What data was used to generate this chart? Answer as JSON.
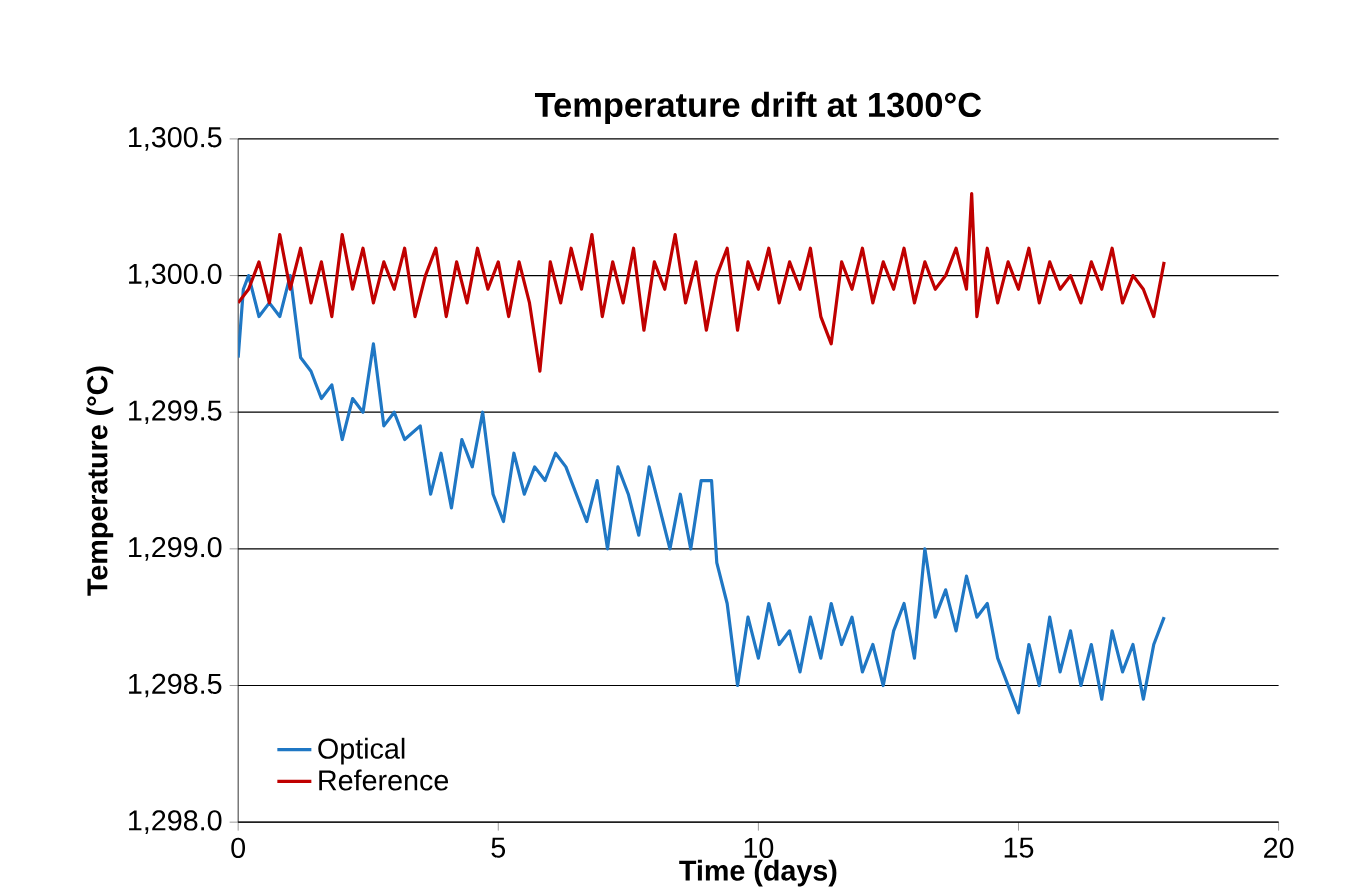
{
  "chart_data": {
    "type": "line",
    "title": "Temperature drift at 1300°C",
    "xlabel": "Time (days)",
    "ylabel": "Temperature (°C)",
    "xlim": [
      0,
      20
    ],
    "xticks": [
      0,
      5,
      10,
      15,
      20
    ],
    "ylim": [
      1298.0,
      1300.5
    ],
    "yticks": [
      {
        "value": 1298.0,
        "label": "1,298.0"
      },
      {
        "value": 1298.5,
        "label": "1,298.5"
      },
      {
        "value": 1299.0,
        "label": "1,299.0"
      },
      {
        "value": 1299.5,
        "label": "1,299.5"
      },
      {
        "value": 1300.0,
        "label": "1,300.0"
      },
      {
        "value": 1300.5,
        "label": "1,300.5"
      }
    ],
    "grid": "y",
    "legend": "bottom left",
    "marker": "none",
    "line_style": "solid",
    "series": [
      {
        "name": "Optical",
        "color": "#1f77c4",
        "x": [
          0,
          0.1,
          0.2,
          0.4,
          0.6,
          0.8,
          1.0,
          1.2,
          1.4,
          1.6,
          1.8,
          2.0,
          2.2,
          2.4,
          2.6,
          2.8,
          3.0,
          3.2,
          3.5,
          3.7,
          3.9,
          4.1,
          4.3,
          4.5,
          4.7,
          4.9,
          5.1,
          5.3,
          5.5,
          5.7,
          5.9,
          6.1,
          6.3,
          6.5,
          6.7,
          6.9,
          7.1,
          7.3,
          7.5,
          7.7,
          7.9,
          8.1,
          8.3,
          8.5,
          8.7,
          8.9,
          9.1,
          9.2,
          9.4,
          9.6,
          9.8,
          10.0,
          10.2,
          10.4,
          10.6,
          10.8,
          11.0,
          11.2,
          11.4,
          11.6,
          11.8,
          12.0,
          12.2,
          12.4,
          12.6,
          12.8,
          13.0,
          13.2,
          13.4,
          13.6,
          13.8,
          14.0,
          14.2,
          14.4,
          14.6,
          14.8,
          15.0,
          15.2,
          15.4,
          15.6,
          15.8,
          16.0,
          16.2,
          16.4,
          16.6,
          16.8,
          17.0,
          17.2,
          17.4,
          17.6,
          17.8
        ],
        "values": [
          1299.7,
          1299.95,
          1300.0,
          1299.85,
          1299.9,
          1299.85,
          1300.0,
          1299.7,
          1299.65,
          1299.55,
          1299.6,
          1299.4,
          1299.55,
          1299.5,
          1299.75,
          1299.45,
          1299.5,
          1299.4,
          1299.45,
          1299.2,
          1299.35,
          1299.15,
          1299.4,
          1299.3,
          1299.5,
          1299.2,
          1299.1,
          1299.35,
          1299.2,
          1299.3,
          1299.25,
          1299.35,
          1299.3,
          1299.2,
          1299.1,
          1299.25,
          1299.0,
          1299.3,
          1299.2,
          1299.05,
          1299.3,
          1299.15,
          1299.0,
          1299.2,
          1299.0,
          1299.25,
          1299.25,
          1298.95,
          1298.8,
          1298.5,
          1298.75,
          1298.6,
          1298.8,
          1298.65,
          1298.7,
          1298.55,
          1298.75,
          1298.6,
          1298.8,
          1298.65,
          1298.75,
          1298.55,
          1298.65,
          1298.5,
          1298.7,
          1298.8,
          1298.6,
          1299.0,
          1298.75,
          1298.85,
          1298.7,
          1298.9,
          1298.75,
          1298.8,
          1298.6,
          1298.5,
          1298.4,
          1298.65,
          1298.5,
          1298.75,
          1298.55,
          1298.7,
          1298.5,
          1298.65,
          1298.45,
          1298.7,
          1298.55,
          1298.65,
          1298.45,
          1298.65,
          1298.75
        ]
      },
      {
        "name": "Reference",
        "color": "#c00000",
        "x": [
          0,
          0.2,
          0.4,
          0.6,
          0.8,
          1.0,
          1.2,
          1.4,
          1.6,
          1.8,
          2.0,
          2.2,
          2.4,
          2.6,
          2.8,
          3.0,
          3.2,
          3.4,
          3.6,
          3.8,
          4.0,
          4.2,
          4.4,
          4.6,
          4.8,
          5.0,
          5.2,
          5.4,
          5.6,
          5.8,
          6.0,
          6.2,
          6.4,
          6.6,
          6.8,
          7.0,
          7.2,
          7.4,
          7.6,
          7.8,
          8.0,
          8.2,
          8.4,
          8.6,
          8.8,
          9.0,
          9.2,
          9.4,
          9.6,
          9.8,
          10.0,
          10.2,
          10.4,
          10.6,
          10.8,
          11.0,
          11.2,
          11.4,
          11.6,
          11.8,
          12.0,
          12.2,
          12.4,
          12.6,
          12.8,
          13.0,
          13.2,
          13.4,
          13.6,
          13.8,
          14.0,
          14.1,
          14.2,
          14.4,
          14.6,
          14.8,
          15.0,
          15.2,
          15.4,
          15.6,
          15.8,
          16.0,
          16.2,
          16.4,
          16.6,
          16.8,
          17.0,
          17.2,
          17.4,
          17.6,
          17.8
        ],
        "values": [
          1299.9,
          1299.95,
          1300.05,
          1299.9,
          1300.15,
          1299.95,
          1300.1,
          1299.9,
          1300.05,
          1299.85,
          1300.15,
          1299.95,
          1300.1,
          1299.9,
          1300.05,
          1299.95,
          1300.1,
          1299.85,
          1300.0,
          1300.1,
          1299.85,
          1300.05,
          1299.9,
          1300.1,
          1299.95,
          1300.05,
          1299.85,
          1300.05,
          1299.9,
          1299.65,
          1300.05,
          1299.9,
          1300.1,
          1299.95,
          1300.15,
          1299.85,
          1300.05,
          1299.9,
          1300.1,
          1299.8,
          1300.05,
          1299.95,
          1300.15,
          1299.9,
          1300.05,
          1299.8,
          1300.0,
          1300.1,
          1299.8,
          1300.05,
          1299.95,
          1300.1,
          1299.9,
          1300.05,
          1299.95,
          1300.1,
          1299.85,
          1299.75,
          1300.05,
          1299.95,
          1300.1,
          1299.9,
          1300.05,
          1299.95,
          1300.1,
          1299.9,
          1300.05,
          1299.95,
          1300.0,
          1300.1,
          1299.95,
          1300.3,
          1299.85,
          1300.1,
          1299.9,
          1300.05,
          1299.95,
          1300.1,
          1299.9,
          1300.05,
          1299.95,
          1300.0,
          1299.9,
          1300.05,
          1299.95,
          1300.1,
          1299.9,
          1300.0,
          1299.95,
          1299.85,
          1300.05
        ]
      }
    ]
  }
}
